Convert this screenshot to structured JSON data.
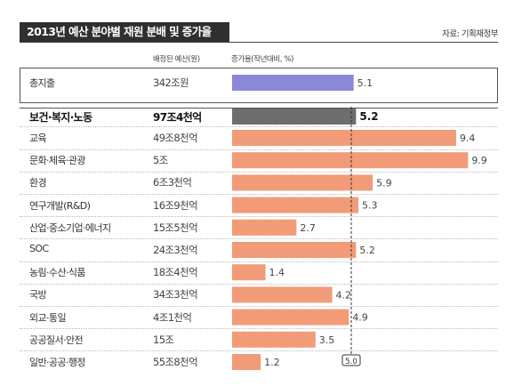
{
  "title": "2013년 예산 분야별 재원 분배 및 증가율",
  "source": "자료: 기획재정부",
  "col_budget": "배정된 예산(원)",
  "col_rate": "증가율(작년대비, %)",
  "colors": {
    "total": "#8b88d8",
    "highlight": "#6e6e6e",
    "bar": "#f29b78",
    "title_bg": "#2f2f2f"
  },
  "chart_data": {
    "type": "bar",
    "orientation": "horizontal",
    "title": "2013년 예산 분야별 재원 분배 및 증가율",
    "categories": [
      "총지출",
      "보건·복지·노동",
      "교육",
      "문화·체육·관광",
      "환경",
      "연구개발(R&D)",
      "산업·중소기업·에너지",
      "SOC",
      "농림·수산·식품",
      "국방",
      "외교·통일",
      "공공질서·안전",
      "일반·공공·행정"
    ],
    "budgets": [
      "342조원",
      "97조4천억",
      "49조8천억",
      "5조",
      "6조3천억",
      "16조9천억",
      "15조5천억",
      "24조3천억",
      "18조4천억",
      "34조3천억",
      "4조1천억",
      "15조",
      "55조8천억"
    ],
    "values": [
      5.1,
      5.2,
      9.4,
      9.9,
      5.9,
      5.3,
      2.7,
      5.2,
      1.4,
      4.2,
      4.9,
      3.5,
      1.2
    ],
    "value_labels": [
      "5.1",
      "5.2",
      "9.4",
      "9.9",
      "5.9",
      "5.3",
      "2.7",
      "5.2",
      "1.4",
      "4.2",
      "4.9",
      "3.5",
      "1.2"
    ],
    "reference_line": {
      "value": 5.0,
      "label": "5.0"
    },
    "xlim": [
      0,
      10
    ]
  }
}
